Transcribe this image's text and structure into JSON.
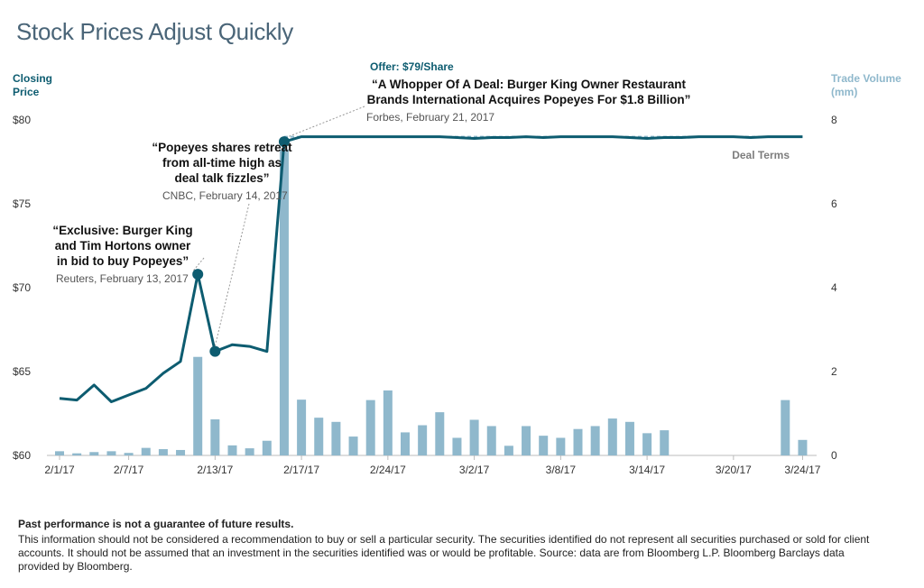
{
  "title": "Stock Prices Adjust Quickly",
  "left_axis_title": [
    "Closing",
    "Price"
  ],
  "right_axis_title": [
    "Trade Volume",
    "(mm)"
  ],
  "footer": {
    "disclaimer_bold": "Past performance is not a guarantee of future results.",
    "disclaimer_text": "This information should not be considered a recommendation to buy or sell a particular security. The securities identified do not represent all securities purchased or sold for client accounts. It should not be assumed that an investment in the securities identified was or would be profitable. Source: data are from Bloomberg L.P. Bloomberg Barclays data provided by Bloomberg."
  },
  "colors": {
    "price_line": "#0d5c70",
    "volume_bar": "#8fb8cc",
    "deal_line": "#8fb8cc"
  },
  "chart_data": {
    "type": "bar+line",
    "x_tick_labels": [
      "2/1/17",
      "2/7/17",
      "2/13/17",
      "2/17/17",
      "2/24/17",
      "3/2/17",
      "3/8/17",
      "3/14/17",
      "3/20/17",
      "3/24/17"
    ],
    "x_tick_index": [
      0,
      4,
      9,
      14,
      19,
      24,
      29,
      34,
      39,
      43
    ],
    "y_left": {
      "ticks": [
        "$60",
        "$65",
        "$70",
        "$75",
        "$80"
      ],
      "values": [
        60,
        65,
        70,
        75,
        80
      ],
      "ylim": [
        60,
        80
      ]
    },
    "y_right": {
      "ticks": [
        "0",
        "2",
        "4",
        "6",
        "8"
      ],
      "values": [
        0,
        2,
        4,
        6,
        8
      ],
      "ylim": [
        0,
        8
      ]
    },
    "series": [
      {
        "name": "Closing Price",
        "kind": "line",
        "values": [
          63.4,
          63.3,
          64.2,
          63.2,
          63.6,
          64.0,
          64.9,
          65.6,
          70.8,
          66.2,
          66.6,
          66.5,
          66.2,
          78.7,
          79.0,
          79.0,
          79.0,
          79.0,
          79.0,
          79.0,
          79.0,
          79.0,
          79.0,
          78.95,
          78.9,
          78.95,
          78.95,
          79.0,
          78.95,
          79.0,
          79.0,
          79.0,
          79.0,
          78.95,
          78.9,
          78.95,
          78.95,
          79.0,
          79.0,
          79.0,
          78.95,
          79.0,
          79.0,
          79.0
        ]
      },
      {
        "name": "Trade Volume",
        "kind": "bar",
        "values": [
          0.1,
          0.05,
          0.08,
          0.1,
          0.06,
          0.18,
          0.15,
          0.13,
          2.35,
          0.86,
          0.24,
          0.17,
          0.35,
          7.3,
          1.33,
          0.9,
          0.8,
          0.45,
          1.32,
          1.55,
          0.55,
          0.72,
          1.03,
          0.42,
          0.85,
          0.7,
          0.23,
          0.7,
          0.47,
          0.42,
          0.63,
          0.7,
          0.88,
          0.8,
          0.53,
          0.6,
          1.32,
          0.37
        ]
      }
    ],
    "bar_x_index": [
      0,
      1,
      2,
      3,
      4,
      5,
      6,
      7,
      8,
      9,
      10,
      11,
      12,
      13,
      14,
      15,
      16,
      17,
      18,
      19,
      20,
      21,
      22,
      23,
      24,
      25,
      26,
      27,
      28,
      29,
      30,
      31,
      32,
      33,
      34,
      35,
      42,
      43
    ],
    "deal_terms": {
      "label": "Deal Terms",
      "value": 79
    },
    "annotations": [
      {
        "headline": [
          "“Exclusive: Burger King",
          "and Tim Hortons owner",
          "in bid to buy Popeyes”"
        ],
        "source": "Reuters, February 13, 2017",
        "point_index": 8
      },
      {
        "headline": [
          "“Popeyes shares retreat",
          "from all-time high as",
          "deal talk fizzles”"
        ],
        "source": "CNBC, February 14, 2017",
        "point_index": 9
      },
      {
        "offer": "Offer: $79/Share",
        "headline": [
          "“A Whopper Of A Deal: Burger King Owner Restaurant",
          "Brands International Acquires Popeyes For $1.8 Billion”"
        ],
        "source": "Forbes, February 21, 2017",
        "point_index": 13
      }
    ]
  }
}
